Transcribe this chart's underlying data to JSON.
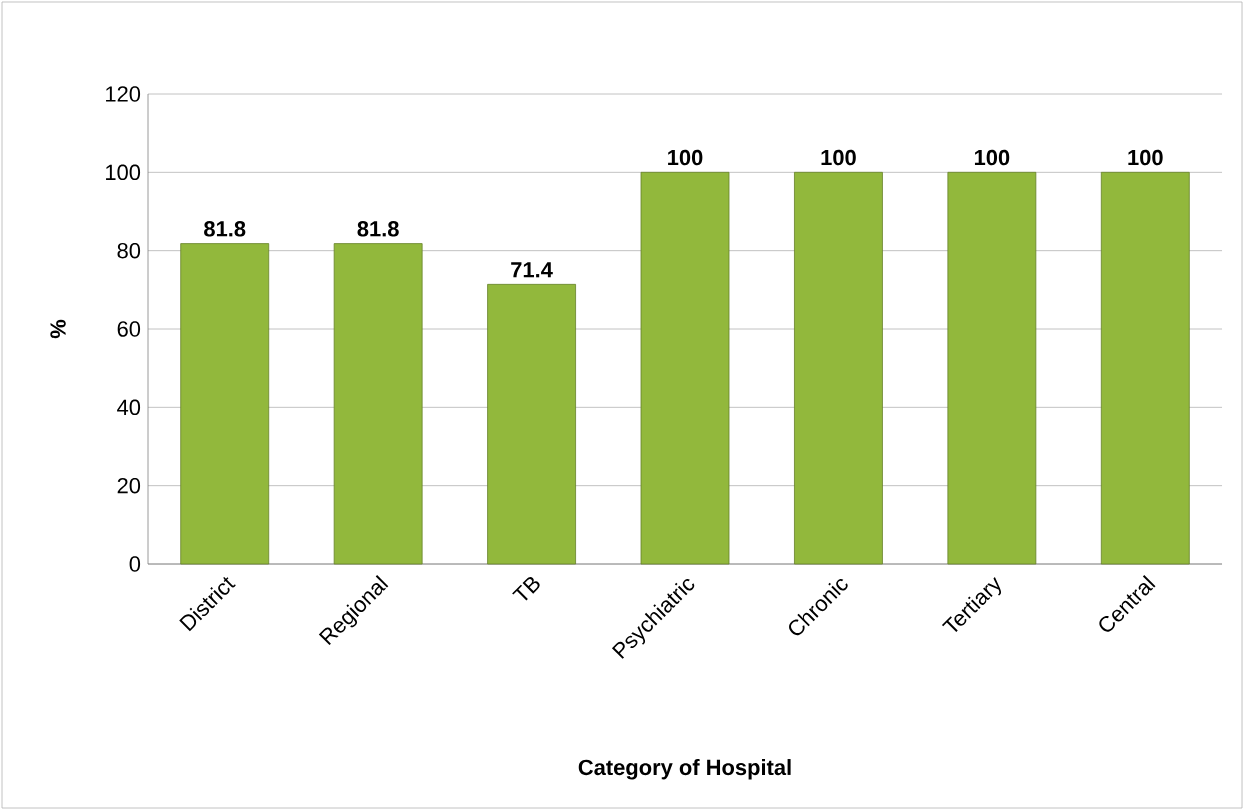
{
  "chart_data": {
    "type": "bar",
    "xlabel": "Category of Hospital",
    "ylabel": "%",
    "categories": [
      "District",
      "Regional",
      "TB",
      "Psychiatric",
      "Chronic",
      "Tertiary",
      "Central"
    ],
    "values": [
      81.8,
      81.8,
      71.4,
      100,
      100,
      100,
      100
    ],
    "color": "#92b83c",
    "ylim": [
      0,
      120
    ],
    "yticks": [
      0,
      20,
      40,
      60,
      80,
      100,
      120
    ],
    "grid": "y",
    "data_labels": true
  }
}
